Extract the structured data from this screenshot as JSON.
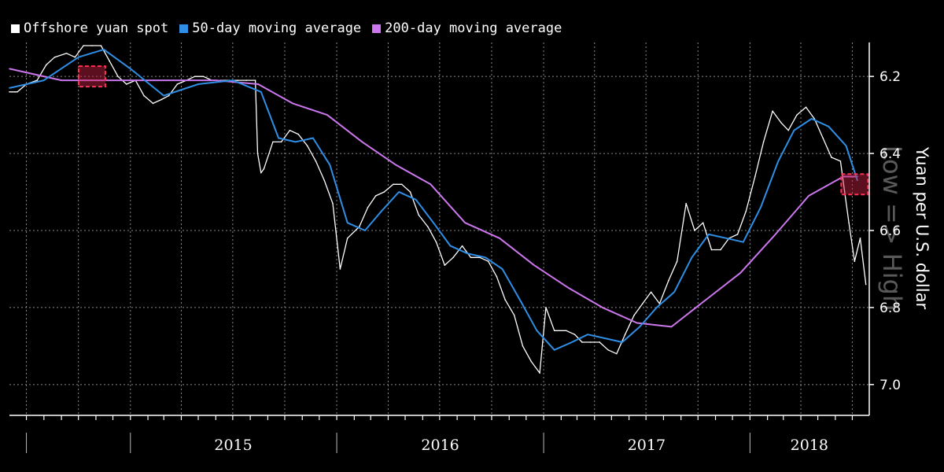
{
  "chart_data": {
    "type": "line",
    "title": "",
    "ylabel": "Yuan per U.S. dollar",
    "watermark": "Low => High",
    "y_inverted": true,
    "ylim": [
      7.08,
      6.12
    ],
    "yticks": [
      6.2,
      6.4,
      6.6,
      6.8,
      7.0
    ],
    "ytick_labels": [
      "6.2",
      "6.4",
      "6.6",
      "6.8",
      "7.0"
    ],
    "x_range": [
      "2014-06-01",
      "2018-07-31"
    ],
    "year_labels": [
      "2015",
      "2016",
      "2017",
      "2018"
    ],
    "grid": true,
    "legend": {
      "placement": "top-left",
      "items": [
        {
          "label": "Offshore yuan spot",
          "color": "#ffffff"
        },
        {
          "label": "50-day moving average",
          "color": "#2f8fe6"
        },
        {
          "label": "200-day moving average",
          "color": "#cc77ee"
        }
      ]
    },
    "series": [
      {
        "name": "Offshore yuan spot",
        "color": "#ffffff",
        "points": [
          [
            "2014-06-01",
            6.24
          ],
          [
            "2014-06-15",
            6.24
          ],
          [
            "2014-07-01",
            6.22
          ],
          [
            "2014-07-20",
            6.21
          ],
          [
            "2014-08-05",
            6.17
          ],
          [
            "2014-08-20",
            6.15
          ],
          [
            "2014-09-10",
            6.14
          ],
          [
            "2014-09-25",
            6.15
          ],
          [
            "2014-10-10",
            6.12
          ],
          [
            "2014-10-25",
            6.12
          ],
          [
            "2014-11-10",
            6.12
          ],
          [
            "2014-11-25",
            6.16
          ],
          [
            "2014-12-10",
            6.2
          ],
          [
            "2014-12-25",
            6.22
          ],
          [
            "2015-01-10",
            6.21
          ],
          [
            "2015-01-25",
            6.25
          ],
          [
            "2015-02-10",
            6.27
          ],
          [
            "2015-02-25",
            6.26
          ],
          [
            "2015-03-10",
            6.25
          ],
          [
            "2015-03-25",
            6.22
          ],
          [
            "2015-04-10",
            6.21
          ],
          [
            "2015-04-25",
            6.2
          ],
          [
            "2015-05-10",
            6.2
          ],
          [
            "2015-05-25",
            6.21
          ],
          [
            "2015-06-10",
            6.21
          ],
          [
            "2015-06-25",
            6.21
          ],
          [
            "2015-07-10",
            6.21
          ],
          [
            "2015-07-25",
            6.21
          ],
          [
            "2015-08-10",
            6.21
          ],
          [
            "2015-08-14",
            6.4
          ],
          [
            "2015-08-20",
            6.45
          ],
          [
            "2015-08-25",
            6.44
          ],
          [
            "2015-09-10",
            6.37
          ],
          [
            "2015-09-25",
            6.37
          ],
          [
            "2015-10-10",
            6.34
          ],
          [
            "2015-10-25",
            6.35
          ],
          [
            "2015-11-10",
            6.38
          ],
          [
            "2015-11-25",
            6.42
          ],
          [
            "2015-12-10",
            6.47
          ],
          [
            "2015-12-25",
            6.53
          ],
          [
            "2016-01-07",
            6.7
          ],
          [
            "2016-01-20",
            6.62
          ],
          [
            "2016-02-10",
            6.59
          ],
          [
            "2016-02-25",
            6.54
          ],
          [
            "2016-03-10",
            6.51
          ],
          [
            "2016-03-25",
            6.5
          ],
          [
            "2016-04-10",
            6.48
          ],
          [
            "2016-04-25",
            6.48
          ],
          [
            "2016-05-10",
            6.5
          ],
          [
            "2016-05-25",
            6.56
          ],
          [
            "2016-06-10",
            6.59
          ],
          [
            "2016-06-25",
            6.63
          ],
          [
            "2016-07-10",
            6.69
          ],
          [
            "2016-07-25",
            6.67
          ],
          [
            "2016-08-10",
            6.64
          ],
          [
            "2016-08-25",
            6.67
          ],
          [
            "2016-09-10",
            6.67
          ],
          [
            "2016-09-25",
            6.68
          ],
          [
            "2016-10-10",
            6.72
          ],
          [
            "2016-10-25",
            6.78
          ],
          [
            "2016-11-10",
            6.82
          ],
          [
            "2016-11-25",
            6.9
          ],
          [
            "2016-12-10",
            6.94
          ],
          [
            "2016-12-25",
            6.97
          ],
          [
            "2017-01-05",
            6.8
          ],
          [
            "2017-01-20",
            6.86
          ],
          [
            "2017-02-10",
            6.86
          ],
          [
            "2017-02-25",
            6.87
          ],
          [
            "2017-03-10",
            6.89
          ],
          [
            "2017-03-25",
            6.89
          ],
          [
            "2017-04-10",
            6.89
          ],
          [
            "2017-04-25",
            6.91
          ],
          [
            "2017-05-10",
            6.92
          ],
          [
            "2017-05-25",
            6.87
          ],
          [
            "2017-06-10",
            6.82
          ],
          [
            "2017-06-25",
            6.79
          ],
          [
            "2017-07-10",
            6.76
          ],
          [
            "2017-07-25",
            6.79
          ],
          [
            "2017-08-10",
            6.73
          ],
          [
            "2017-08-25",
            6.68
          ],
          [
            "2017-09-10",
            6.53
          ],
          [
            "2017-09-25",
            6.6
          ],
          [
            "2017-10-10",
            6.58
          ],
          [
            "2017-10-25",
            6.65
          ],
          [
            "2017-11-10",
            6.65
          ],
          [
            "2017-11-25",
            6.62
          ],
          [
            "2017-12-10",
            6.61
          ],
          [
            "2017-12-25",
            6.55
          ],
          [
            "2018-01-10",
            6.46
          ],
          [
            "2018-01-25",
            6.37
          ],
          [
            "2018-02-10",
            6.29
          ],
          [
            "2018-02-25",
            6.32
          ],
          [
            "2018-03-10",
            6.34
          ],
          [
            "2018-03-25",
            6.3
          ],
          [
            "2018-04-10",
            6.28
          ],
          [
            "2018-04-25",
            6.31
          ],
          [
            "2018-05-10",
            6.36
          ],
          [
            "2018-05-25",
            6.41
          ],
          [
            "2018-06-10",
            6.42
          ],
          [
            "2018-06-25",
            6.58
          ],
          [
            "2018-07-05",
            6.68
          ],
          [
            "2018-07-15",
            6.62
          ],
          [
            "2018-07-25",
            6.74
          ]
        ]
      },
      {
        "name": "50-day moving average",
        "color": "#2f8fe6",
        "points": [
          [
            "2014-06-01",
            6.23
          ],
          [
            "2014-08-01",
            6.21
          ],
          [
            "2014-10-01",
            6.15
          ],
          [
            "2014-11-15",
            6.13
          ],
          [
            "2015-01-01",
            6.18
          ],
          [
            "2015-03-01",
            6.25
          ],
          [
            "2015-05-01",
            6.22
          ],
          [
            "2015-07-01",
            6.21
          ],
          [
            "2015-08-20",
            6.24
          ],
          [
            "2015-09-20",
            6.36
          ],
          [
            "2015-10-20",
            6.37
          ],
          [
            "2015-11-20",
            6.36
          ],
          [
            "2015-12-20",
            6.43
          ],
          [
            "2016-01-20",
            6.58
          ],
          [
            "2016-02-20",
            6.6
          ],
          [
            "2016-03-20",
            6.55
          ],
          [
            "2016-04-20",
            6.5
          ],
          [
            "2016-05-20",
            6.52
          ],
          [
            "2016-06-20",
            6.58
          ],
          [
            "2016-07-20",
            6.64
          ],
          [
            "2016-08-20",
            6.66
          ],
          [
            "2016-09-20",
            6.67
          ],
          [
            "2016-10-20",
            6.7
          ],
          [
            "2016-11-20",
            6.78
          ],
          [
            "2016-12-20",
            6.86
          ],
          [
            "2017-01-20",
            6.91
          ],
          [
            "2017-02-20",
            6.89
          ],
          [
            "2017-03-20",
            6.87
          ],
          [
            "2017-04-20",
            6.88
          ],
          [
            "2017-05-20",
            6.89
          ],
          [
            "2017-06-20",
            6.85
          ],
          [
            "2017-07-20",
            6.8
          ],
          [
            "2017-08-20",
            6.76
          ],
          [
            "2017-09-20",
            6.67
          ],
          [
            "2017-10-20",
            6.61
          ],
          [
            "2017-11-20",
            6.62
          ],
          [
            "2017-12-20",
            6.63
          ],
          [
            "2018-01-20",
            6.54
          ],
          [
            "2018-02-20",
            6.42
          ],
          [
            "2018-03-20",
            6.34
          ],
          [
            "2018-04-20",
            6.31
          ],
          [
            "2018-05-20",
            6.33
          ],
          [
            "2018-06-20",
            6.38
          ],
          [
            "2018-07-10",
            6.47
          ]
        ]
      },
      {
        "name": "200-day moving average",
        "color": "#cc77ee",
        "points": [
          [
            "2014-06-01",
            6.18
          ],
          [
            "2014-09-01",
            6.21
          ],
          [
            "2014-12-01",
            6.21
          ],
          [
            "2015-03-01",
            6.21
          ],
          [
            "2015-06-01",
            6.21
          ],
          [
            "2015-08-15",
            6.22
          ],
          [
            "2015-10-15",
            6.27
          ],
          [
            "2015-12-15",
            6.3
          ],
          [
            "2016-02-15",
            6.37
          ],
          [
            "2016-04-15",
            6.43
          ],
          [
            "2016-06-15",
            6.48
          ],
          [
            "2016-08-15",
            6.58
          ],
          [
            "2016-10-15",
            6.62
          ],
          [
            "2016-12-15",
            6.69
          ],
          [
            "2017-02-15",
            6.75
          ],
          [
            "2017-04-15",
            6.8
          ],
          [
            "2017-06-15",
            6.84
          ],
          [
            "2017-08-15",
            6.85
          ],
          [
            "2017-10-15",
            6.78
          ],
          [
            "2017-12-15",
            6.71
          ],
          [
            "2018-02-15",
            6.61
          ],
          [
            "2018-04-15",
            6.51
          ],
          [
            "2018-06-15",
            6.46
          ],
          [
            "2018-07-10",
            6.46
          ]
        ]
      }
    ],
    "annotations": [
      {
        "type": "crossover-box",
        "date": "2014-10-25",
        "value": 6.2,
        "color": "#cc2244"
      },
      {
        "type": "crossover-box",
        "date": "2018-07-05",
        "value": 6.48,
        "color": "#cc2244"
      }
    ]
  }
}
